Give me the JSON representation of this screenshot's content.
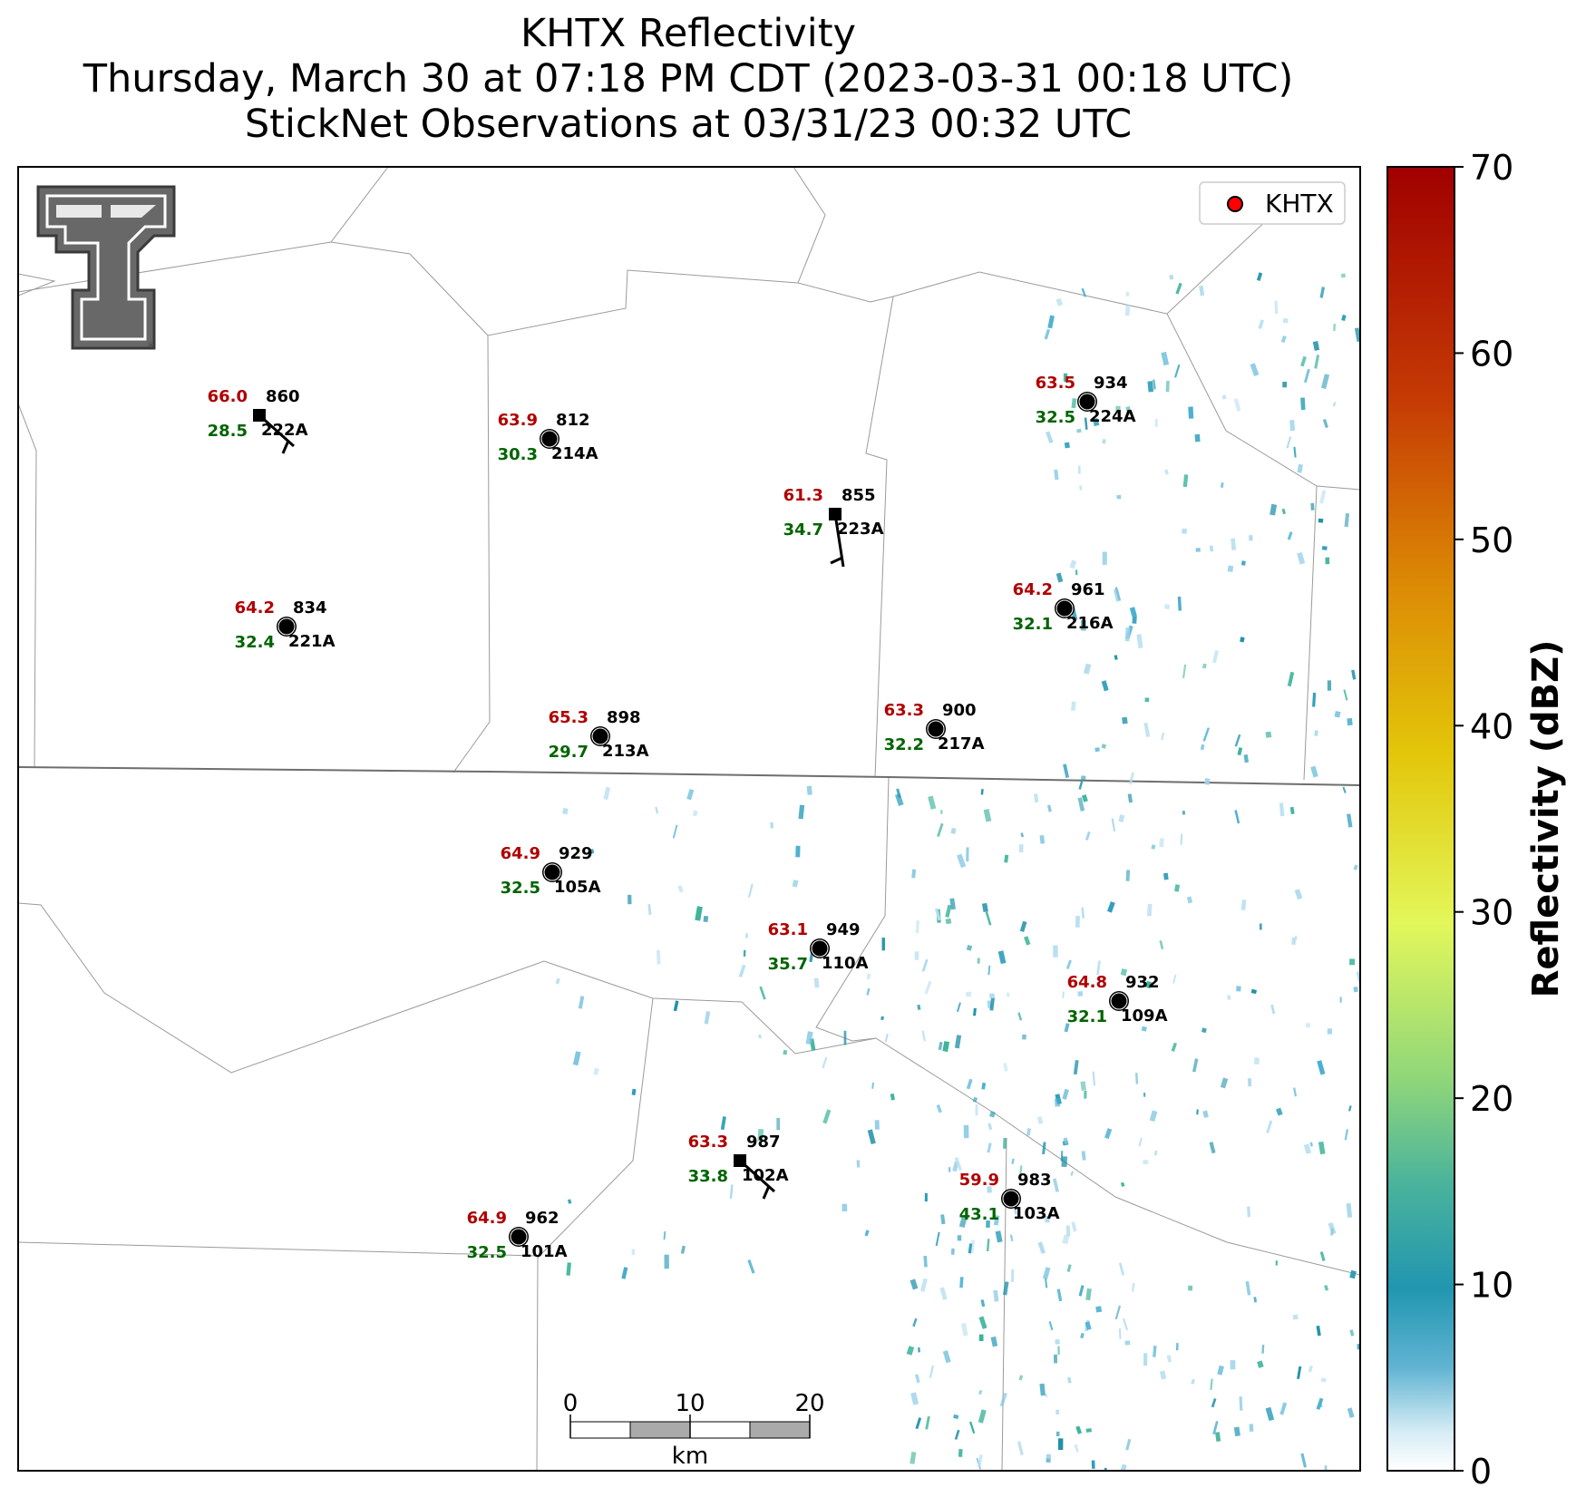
{
  "title": {
    "line1": "KHTX Reflectivity",
    "line2": "Thursday, March 30 at 07:18 PM CDT (2023-03-31 00:18 UTC)",
    "line3": "StickNet Observations at 03/31/23 00:32 UTC"
  },
  "legend": {
    "label": "KHTX",
    "marker_color": "#ff0000"
  },
  "colorbar": {
    "label": "Reflectivity (dBZ)",
    "min": 0,
    "max": 70,
    "ticks": [
      0,
      10,
      20,
      30,
      40,
      50,
      60,
      70
    ]
  },
  "scalebar": {
    "ticks": [
      "0",
      "10",
      "20"
    ],
    "unit": "km"
  },
  "colors": {
    "temp": "#b00000",
    "dew": "#006400",
    "text": "#000000"
  },
  "stations": [
    {
      "id": "222A",
      "temp": "66.0",
      "dew": "28.5",
      "pressure": "860",
      "marker": "square",
      "barb": true
    },
    {
      "id": "214A",
      "temp": "63.9",
      "dew": "30.3",
      "pressure": "812",
      "marker": "calm",
      "barb": false
    },
    {
      "id": "223A",
      "temp": "61.3",
      "dew": "34.7",
      "pressure": "855",
      "marker": "square",
      "barb": true
    },
    {
      "id": "224A",
      "temp": "63.5",
      "dew": "32.5",
      "pressure": "934",
      "marker": "calm",
      "barb": false
    },
    {
      "id": "221A",
      "temp": "64.2",
      "dew": "32.4",
      "pressure": "834",
      "marker": "calm",
      "barb": false
    },
    {
      "id": "216A",
      "temp": "64.2",
      "dew": "32.1",
      "pressure": "961",
      "marker": "calm",
      "barb": false
    },
    {
      "id": "213A",
      "temp": "65.3",
      "dew": "29.7",
      "pressure": "898",
      "marker": "calm",
      "barb": false
    },
    {
      "id": "217A",
      "temp": "63.3",
      "dew": "32.2",
      "pressure": "900",
      "marker": "calm",
      "barb": false
    },
    {
      "id": "105A",
      "temp": "64.9",
      "dew": "32.5",
      "pressure": "929",
      "marker": "calm",
      "barb": false
    },
    {
      "id": "110A",
      "temp": "63.1",
      "dew": "35.7",
      "pressure": "949",
      "marker": "calm",
      "barb": false
    },
    {
      "id": "109A",
      "temp": "64.8",
      "dew": "32.1",
      "pressure": "932",
      "marker": "calm",
      "barb": false
    },
    {
      "id": "102A",
      "temp": "63.3",
      "dew": "33.8",
      "pressure": "987",
      "marker": "square",
      "barb": true
    },
    {
      "id": "103A",
      "temp": "59.9",
      "dew": "43.1",
      "pressure": "983",
      "marker": "calm",
      "barb": false
    },
    {
      "id": "101A",
      "temp": "64.9",
      "dew": "32.5",
      "pressure": "962",
      "marker": "calm",
      "barb": false
    }
  ]
}
